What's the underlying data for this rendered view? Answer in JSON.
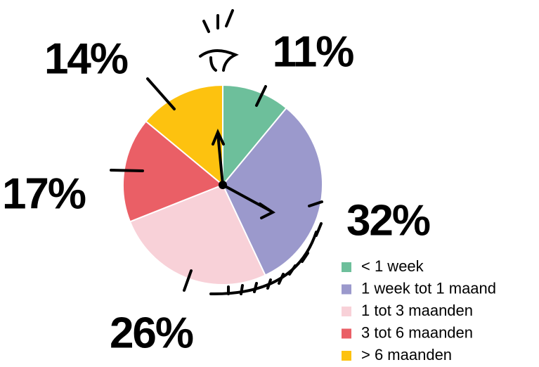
{
  "chart_data": {
    "type": "pie",
    "categories": [
      "< 1 week",
      "1 week tot 1 maand",
      "1 tot 3 maanden",
      "3 tot 6 maanden",
      "> 6 maanden"
    ],
    "values": [
      11,
      32,
      26,
      17,
      14
    ],
    "value_labels": [
      "11%",
      "32%",
      "26%",
      "17%",
      "14%"
    ],
    "colors": [
      "#6dbf9b",
      "#9b99cc",
      "#f8d1d8",
      "#ea5f66",
      "#fdc20f"
    ],
    "legend": "bottom-right"
  }
}
